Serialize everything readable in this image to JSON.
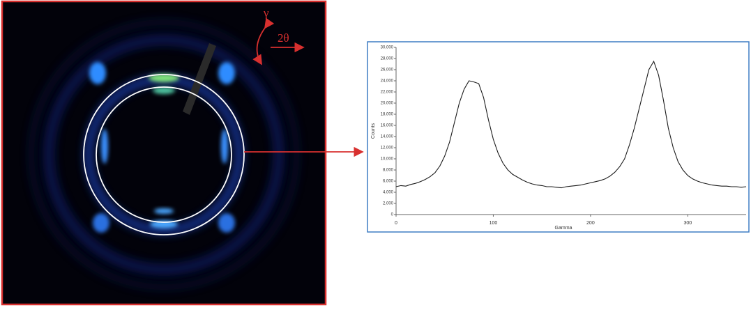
{
  "image": {
    "labels": [
      "γ",
      "2θ"
    ]
  },
  "chart_data": {
    "type": "line",
    "xlabel": "Gamma",
    "ylabel": "Counts",
    "x": [
      0,
      5,
      10,
      15,
      20,
      25,
      30,
      35,
      40,
      45,
      50,
      55,
      60,
      65,
      70,
      75,
      80,
      85,
      90,
      95,
      100,
      105,
      110,
      115,
      120,
      125,
      130,
      135,
      140,
      145,
      150,
      155,
      160,
      165,
      170,
      175,
      180,
      185,
      190,
      195,
      200,
      205,
      210,
      215,
      220,
      225,
      230,
      235,
      240,
      245,
      250,
      255,
      260,
      265,
      270,
      275,
      280,
      285,
      290,
      295,
      300,
      305,
      310,
      315,
      320,
      325,
      330,
      335,
      340,
      345,
      350,
      355,
      360
    ],
    "series": [
      {
        "color": "#1a1a1a",
        "values": [
          5000,
          5200,
          5100,
          5400,
          5600,
          5900,
          6300,
          6800,
          7500,
          8700,
          10500,
          13000,
          16500,
          20000,
          22500,
          24000,
          23800,
          23500,
          21000,
          17000,
          13500,
          11000,
          9200,
          8000,
          7200,
          6700,
          6200,
          5800,
          5500,
          5300,
          5200,
          5000,
          5000,
          4900,
          4800,
          5000,
          5100,
          5200,
          5300,
          5500,
          5700,
          5900,
          6100,
          6400,
          6900,
          7600,
          8600,
          10000,
          12500,
          15500,
          19000,
          22500,
          26000,
          27500,
          25000,
          20500,
          15500,
          12000,
          9500,
          8000,
          7000,
          6400,
          6000,
          5700,
          5500,
          5300,
          5200,
          5100,
          5100,
          5000,
          5000,
          4900,
          5000
        ]
      }
    ],
    "xlim": [
      0,
      360
    ],
    "xticks": [
      0,
      100,
      200,
      300
    ],
    "ylim": [
      0,
      30000
    ],
    "yticks": [
      0,
      {
        "value": 2000,
        "label": "2,000"
      },
      {
        "value": 4000,
        "label": "4,000"
      },
      {
        "value": 6000,
        "label": "6,000"
      },
      {
        "value": 8000,
        "label": "8,000"
      },
      {
        "value": 10000,
        "label": "10,000"
      },
      {
        "value": 12000,
        "label": "12,000"
      },
      {
        "value": 14000,
        "label": "14,000"
      },
      {
        "value": 16000,
        "label": "16,000"
      },
      {
        "value": 18000,
        "label": "18,000"
      },
      {
        "value": 20000,
        "label": "20,000"
      },
      {
        "value": 22000,
        "label": "22,000"
      },
      {
        "value": 24000,
        "label": "24,000"
      },
      {
        "value": 26000,
        "label": "26,000"
      },
      {
        "value": 28000,
        "label": "28,000"
      },
      {
        "value": 30000,
        "label": "30,000"
      }
    ]
  }
}
